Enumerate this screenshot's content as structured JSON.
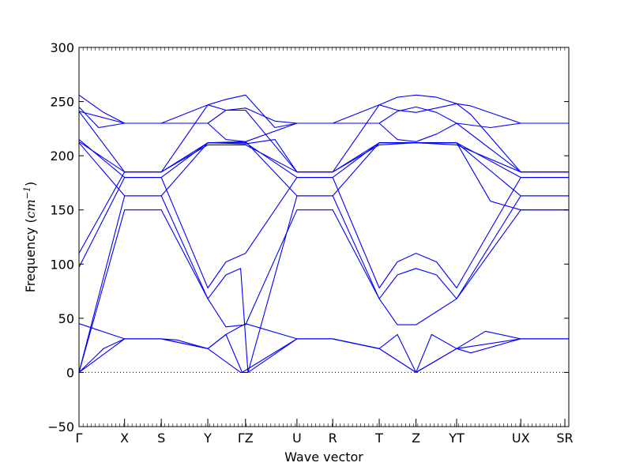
{
  "chart_data": {
    "type": "line",
    "xlabel": "Wave vector",
    "ylabel_text": "Frequency (",
    "ylabel_unit": "cm",
    "ylabel_exp": "−1",
    "ylabel_close": ")",
    "ylim": [
      -50,
      300
    ],
    "yticks": [
      -50,
      0,
      50,
      100,
      150,
      200,
      250,
      300
    ],
    "ytick_labels": [
      "−50",
      "0",
      "50",
      "100",
      "150",
      "200",
      "250",
      "300"
    ],
    "xlim": [
      0,
      1
    ],
    "grid": false,
    "legend": "none",
    "line_color": "#0000ff",
    "zero_line": {
      "y": 0,
      "style": "dotted",
      "color": "#000000"
    },
    "high_symmetry_points": [
      {
        "label": "Γ",
        "x": 0.0
      },
      {
        "label": "X",
        "x": 0.093
      },
      {
        "label": "S",
        "x": 0.168
      },
      {
        "label": "Y",
        "x": 0.263
      },
      {
        "label": "ΓZ",
        "x": 0.34
      },
      {
        "label": "U",
        "x": 0.445
      },
      {
        "label": "R",
        "x": 0.518
      },
      {
        "label": "T",
        "x": 0.613
      },
      {
        "label": "Z",
        "x": 0.688
      },
      {
        "label": "YT",
        "x": 0.771
      },
      {
        "label": "UX",
        "x": 0.902
      },
      {
        "label": "SR",
        "x": 0.992
      }
    ],
    "series": [
      {
        "points": [
          [
            0,
            0
          ],
          [
            0.093,
            31
          ],
          [
            0.168,
            31
          ],
          [
            0.263,
            22
          ],
          [
            0.33,
            0
          ],
          [
            0.345,
            0
          ],
          [
            0.445,
            31
          ],
          [
            0.518,
            31
          ],
          [
            0.613,
            22
          ],
          [
            0.688,
            0
          ],
          [
            0.771,
            22
          ],
          [
            0.902,
            31
          ],
          [
            1,
            31
          ]
        ]
      },
      {
        "points": [
          [
            0,
            0
          ],
          [
            0.05,
            22
          ],
          [
            0.093,
            31
          ],
          [
            0.168,
            31
          ],
          [
            0.2,
            30
          ],
          [
            0.263,
            22
          ],
          [
            0.3,
            35
          ],
          [
            0.333,
            0
          ],
          [
            0.445,
            31
          ],
          [
            0.518,
            31
          ],
          [
            0.613,
            22
          ],
          [
            0.65,
            35
          ],
          [
            0.688,
            0
          ],
          [
            0.72,
            35
          ],
          [
            0.771,
            22
          ],
          [
            0.83,
            38
          ],
          [
            0.902,
            31
          ],
          [
            1,
            31
          ]
        ]
      },
      {
        "points": [
          [
            0,
            45
          ],
          [
            0.093,
            31
          ],
          [
            0.168,
            31
          ],
          [
            0.263,
            22
          ],
          [
            0.3,
            35
          ],
          [
            0.34,
            45
          ],
          [
            0.445,
            31
          ],
          [
            0.518,
            31
          ],
          [
            0.613,
            22
          ],
          [
            0.688,
            0
          ],
          [
            0.771,
            22
          ],
          [
            0.8,
            18
          ],
          [
            0.902,
            31
          ],
          [
            1,
            31
          ]
        ]
      },
      {
        "points": [
          [
            0,
            0
          ],
          [
            0.093,
            150
          ],
          [
            0.168,
            150
          ],
          [
            0.263,
            68
          ],
          [
            0.3,
            42
          ],
          [
            0.34,
            44
          ],
          [
            0.445,
            150
          ],
          [
            0.518,
            150
          ],
          [
            0.613,
            68
          ],
          [
            0.65,
            44
          ],
          [
            0.688,
            44
          ],
          [
            0.771,
            68
          ],
          [
            0.902,
            150
          ],
          [
            1,
            150
          ]
        ]
      },
      {
        "points": [
          [
            0,
            0
          ],
          [
            0.093,
            163
          ],
          [
            0.168,
            163
          ],
          [
            0.263,
            68
          ],
          [
            0.3,
            90
          ],
          [
            0.33,
            96
          ],
          [
            0.345,
            0
          ],
          [
            0.445,
            163
          ],
          [
            0.518,
            163
          ],
          [
            0.613,
            68
          ],
          [
            0.65,
            90
          ],
          [
            0.688,
            96
          ],
          [
            0.73,
            90
          ],
          [
            0.771,
            68
          ],
          [
            0.902,
            163
          ],
          [
            1,
            163
          ]
        ]
      },
      {
        "points": [
          [
            0,
            97
          ],
          [
            0.093,
            180
          ],
          [
            0.168,
            180
          ],
          [
            0.263,
            78
          ],
          [
            0.3,
            102
          ],
          [
            0.34,
            110
          ],
          [
            0.445,
            180
          ],
          [
            0.518,
            180
          ],
          [
            0.613,
            78
          ],
          [
            0.65,
            102
          ],
          [
            0.688,
            110
          ],
          [
            0.73,
            102
          ],
          [
            0.771,
            78
          ],
          [
            0.902,
            180
          ],
          [
            1,
            180
          ]
        ]
      },
      {
        "points": [
          [
            0,
            110
          ],
          [
            0.093,
            185
          ],
          [
            0.168,
            185
          ],
          [
            0.263,
            210
          ],
          [
            0.34,
            210
          ],
          [
            0.445,
            185
          ],
          [
            0.518,
            185
          ],
          [
            0.613,
            210
          ],
          [
            0.688,
            212
          ],
          [
            0.771,
            210
          ],
          [
            0.902,
            185
          ],
          [
            1,
            185
          ]
        ]
      },
      {
        "points": [
          [
            0,
            212
          ],
          [
            0.093,
            163
          ],
          [
            0.168,
            163
          ],
          [
            0.263,
            212
          ],
          [
            0.34,
            213
          ],
          [
            0.445,
            163
          ],
          [
            0.518,
            163
          ],
          [
            0.613,
            212
          ],
          [
            0.688,
            212
          ],
          [
            0.771,
            212
          ],
          [
            0.902,
            163
          ],
          [
            1,
            163
          ]
        ]
      },
      {
        "points": [
          [
            0,
            213
          ],
          [
            0.093,
            185
          ],
          [
            0.168,
            185
          ],
          [
            0.263,
            212
          ],
          [
            0.3,
            212
          ],
          [
            0.34,
            212
          ],
          [
            0.445,
            180
          ],
          [
            0.518,
            180
          ],
          [
            0.613,
            212
          ],
          [
            0.688,
            212
          ],
          [
            0.771,
            212
          ],
          [
            0.84,
            158
          ],
          [
            0.902,
            150
          ],
          [
            1,
            150
          ]
        ]
      },
      {
        "points": [
          [
            0,
            215
          ],
          [
            0.093,
            180
          ],
          [
            0.168,
            180
          ],
          [
            0.263,
            212
          ],
          [
            0.34,
            211
          ],
          [
            0.4,
            215
          ],
          [
            0.445,
            185
          ],
          [
            0.518,
            185
          ],
          [
            0.613,
            212
          ],
          [
            0.688,
            212
          ],
          [
            0.771,
            212
          ],
          [
            0.902,
            180
          ],
          [
            1,
            180
          ]
        ]
      },
      {
        "points": [
          [
            0,
            241
          ],
          [
            0.093,
            230
          ],
          [
            0.168,
            230
          ],
          [
            0.263,
            230
          ],
          [
            0.3,
            215
          ],
          [
            0.34,
            213
          ],
          [
            0.445,
            230
          ],
          [
            0.518,
            230
          ],
          [
            0.613,
            230
          ],
          [
            0.65,
            215
          ],
          [
            0.688,
            213
          ],
          [
            0.73,
            220
          ],
          [
            0.771,
            230
          ],
          [
            0.902,
            185
          ],
          [
            1,
            185
          ]
        ]
      },
      {
        "points": [
          [
            0,
            245
          ],
          [
            0.04,
            226
          ],
          [
            0.093,
            230
          ],
          [
            0.168,
            230
          ],
          [
            0.263,
            230
          ],
          [
            0.3,
            242
          ],
          [
            0.34,
            244
          ],
          [
            0.4,
            232
          ],
          [
            0.445,
            230
          ],
          [
            0.518,
            230
          ],
          [
            0.613,
            230
          ],
          [
            0.65,
            241
          ],
          [
            0.688,
            245
          ],
          [
            0.73,
            240
          ],
          [
            0.771,
            230
          ],
          [
            0.84,
            226
          ],
          [
            0.902,
            230
          ],
          [
            1,
            230
          ]
        ]
      },
      {
        "points": [
          [
            0,
            256
          ],
          [
            0.05,
            240
          ],
          [
            0.093,
            230
          ],
          [
            0.168,
            230
          ],
          [
            0.263,
            247
          ],
          [
            0.3,
            252
          ],
          [
            0.34,
            256
          ],
          [
            0.4,
            226
          ],
          [
            0.445,
            230
          ],
          [
            0.518,
            230
          ],
          [
            0.613,
            247
          ],
          [
            0.65,
            254
          ],
          [
            0.688,
            256
          ],
          [
            0.73,
            254
          ],
          [
            0.771,
            248
          ],
          [
            0.8,
            246
          ],
          [
            0.902,
            230
          ],
          [
            1,
            230
          ]
        ]
      },
      {
        "points": [
          [
            0,
            241
          ],
          [
            0.093,
            185
          ],
          [
            0.168,
            185
          ],
          [
            0.263,
            247
          ],
          [
            0.3,
            242
          ],
          [
            0.34,
            242
          ],
          [
            0.445,
            185
          ],
          [
            0.518,
            185
          ],
          [
            0.613,
            247
          ],
          [
            0.65,
            242
          ],
          [
            0.688,
            240
          ],
          [
            0.771,
            248
          ],
          [
            0.8,
            238
          ],
          [
            0.902,
            185
          ],
          [
            1,
            185
          ]
        ]
      }
    ]
  }
}
